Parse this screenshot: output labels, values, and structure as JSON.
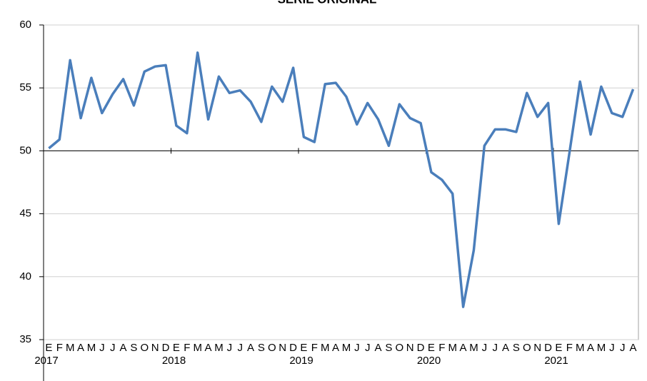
{
  "chart_data": {
    "type": "line",
    "title": "SERIE ORIGINAL",
    "categories": [
      "E",
      "F",
      "M",
      "A",
      "M",
      "J",
      "J",
      "A",
      "S",
      "O",
      "N",
      "D",
      "E",
      "F",
      "M",
      "A",
      "M",
      "J",
      "J",
      "A",
      "S",
      "O",
      "N",
      "D",
      "E",
      "F",
      "M",
      "A",
      "M",
      "J",
      "J",
      "A",
      "S",
      "O",
      "N",
      "D",
      "E",
      "F",
      "M",
      "A",
      "M",
      "J",
      "J",
      "A",
      "S",
      "O",
      "N",
      "D",
      "E",
      "F",
      "M",
      "A",
      "M",
      "J",
      "J",
      "A"
    ],
    "years": [
      "2017",
      "2018",
      "2019",
      "2020",
      "2021"
    ],
    "series": [
      {
        "name": "Serie original",
        "color": "#4a7ebb",
        "values": [
          50.2,
          50.9,
          57.2,
          52.6,
          55.8,
          53.0,
          54.5,
          55.7,
          53.6,
          56.3,
          56.7,
          56.8,
          52.0,
          51.4,
          57.8,
          52.5,
          55.9,
          54.6,
          54.8,
          53.9,
          52.3,
          55.1,
          53.9,
          56.6,
          51.1,
          50.7,
          55.3,
          55.4,
          54.3,
          52.1,
          53.8,
          52.5,
          50.4,
          53.7,
          52.6,
          52.2,
          48.3,
          47.7,
          46.6,
          37.6,
          42.1,
          50.4,
          51.7,
          51.7,
          51.5,
          54.6,
          52.7,
          53.8,
          44.2,
          49.8,
          55.5,
          51.3,
          55.1,
          53.0,
          52.7,
          54.9
        ]
      }
    ],
    "ylim": [
      35,
      60
    ],
    "yticks": [
      35,
      40,
      45,
      50,
      55,
      60
    ],
    "grid": true,
    "x_axis_at": 50
  }
}
